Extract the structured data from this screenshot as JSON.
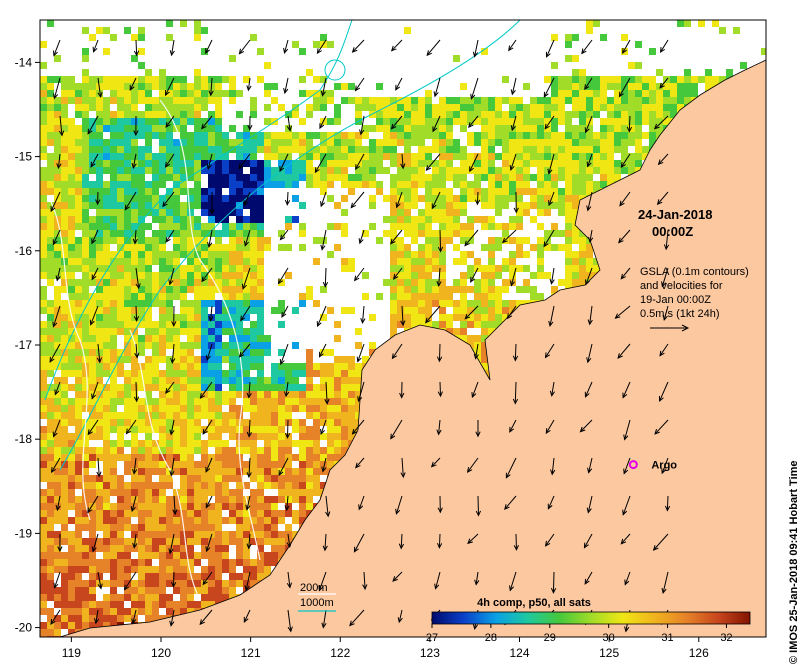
{
  "chart_data": {
    "type": "heatmap",
    "title": "",
    "x_ticks": [
      "119",
      "120",
      "121",
      "122",
      "123",
      "124",
      "125",
      "126"
    ],
    "y_ticks": [
      "-14",
      "-15",
      "-16",
      "-17",
      "-18",
      "-19",
      "-20"
    ],
    "x_range": [
      118.65,
      126.75
    ],
    "y_range": [
      -20.1,
      -13.55
    ],
    "x_tick_values": [
      119,
      120,
      121,
      122,
      123,
      124,
      125,
      126
    ],
    "y_tick_values": [
      -14,
      -15,
      -16,
      -17,
      -18,
      -19,
      -20
    ],
    "colorbar": {
      "title": "4h comp, p50, all sats",
      "ticks": [
        "27",
        "28",
        "29",
        "30",
        "31",
        "32"
      ],
      "tick_values": [
        27,
        28,
        29,
        30,
        31,
        32
      ],
      "range": [
        27,
        32.4
      ],
      "colors": [
        "#000a6e",
        "#0a40c8",
        "#0aa0e6",
        "#1ec8a0",
        "#46c83c",
        "#a0dc28",
        "#f0e614",
        "#f0b41e",
        "#e68228",
        "#c8461e",
        "#821400"
      ]
    },
    "land_color": "#fcc8a0",
    "date_label_line1": "24-Jan-2018",
    "date_label_line2": "00:00Z",
    "gsla_note": [
      "GSLA (0.1m contours)",
      "and velocities for",
      "19-Jan 00:00Z",
      "0.5m/s (1kt 24h)"
    ],
    "marker_label": "Argo",
    "marker_lon": 125.27,
    "marker_lat": -18.27,
    "marker_color": "#e600e6",
    "contour_legend": [
      "200m",
      "1000m"
    ],
    "contour_color": "#00c8c8",
    "credit": "© IMOS 25-Jan-2018 09:41 Hobart Time"
  }
}
